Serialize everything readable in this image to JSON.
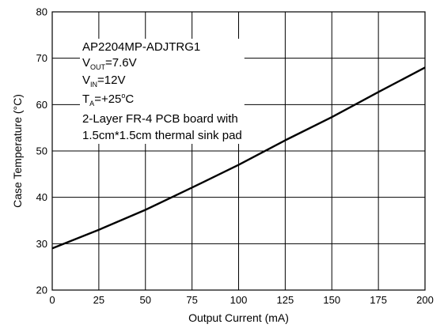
{
  "chart_data": {
    "type": "line",
    "xlabel": "Output Current (mA)",
    "ylabel": "Case Temperature (°C)",
    "xlim": [
      0,
      200
    ],
    "ylim": [
      20,
      80
    ],
    "x_ticks": [
      0,
      25,
      50,
      75,
      100,
      125,
      150,
      175,
      200
    ],
    "y_ticks": [
      20,
      30,
      40,
      50,
      60,
      70,
      80
    ],
    "grid": true,
    "series": [
      {
        "x": [
          0,
          25,
          50,
          75,
          100,
          125,
          150,
          175,
          200
        ],
        "y": [
          29,
          33,
          37.3,
          42.1,
          47,
          52.3,
          57.3,
          62.7,
          68
        ],
        "color": "#000000"
      }
    ],
    "annotation": {
      "part": "AP2204MP-ADJTRG1",
      "vout": {
        "sym": "V",
        "sub": "OUT",
        "rest": "=7.6V"
      },
      "vin": {
        "sym": "V",
        "sub": "IN",
        "rest": "=12V"
      },
      "ta": {
        "sym": "T",
        "sub": "A",
        "mid": "=+25",
        "sup": "o",
        "end": "C"
      },
      "board_line1": "2-Layer FR-4 PCB board with",
      "board_line2": "1.5cm*1.5cm thermal sink pad"
    }
  }
}
